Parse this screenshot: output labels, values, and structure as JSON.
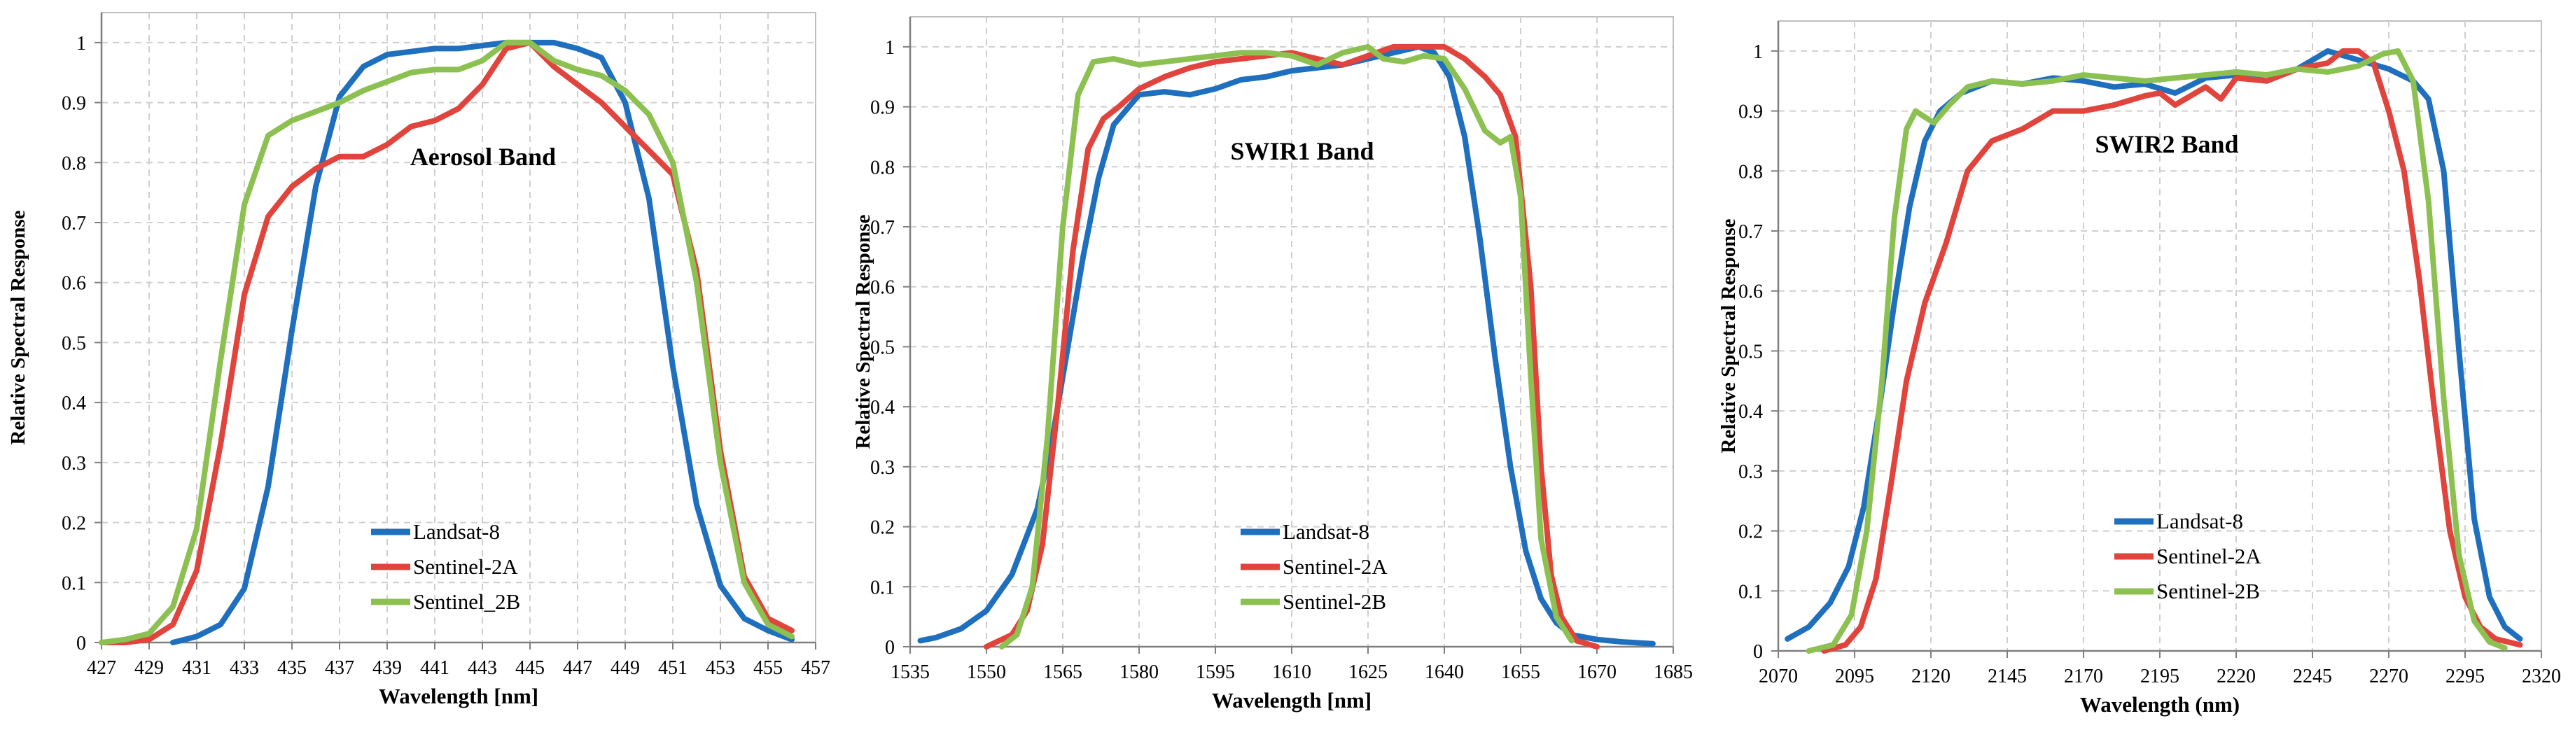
{
  "chart_data": [
    {
      "type": "line",
      "title": "Aerosol Band",
      "xlabel": "Wavelength [nm]",
      "ylabel": "Relative Spectral Response",
      "xlim": [
        427,
        457
      ],
      "ylim": [
        0,
        1.05
      ],
      "xticks": [
        427,
        429,
        431,
        433,
        435,
        437,
        439,
        441,
        443,
        445,
        447,
        449,
        451,
        453,
        455,
        457
      ],
      "yticks": [
        0,
        0.1,
        0.2,
        0.3,
        0.4,
        0.5,
        0.6,
        0.7,
        0.8,
        0.9,
        1
      ],
      "grid": true,
      "legend": "bottom-center",
      "series": [
        {
          "name": "Landsat-8",
          "color": "#1f6fbf",
          "x": [
            430,
            431,
            432,
            433,
            434,
            435,
            436,
            437,
            438,
            439,
            440,
            441,
            442,
            443,
            444,
            445,
            446,
            447,
            448,
            449,
            450,
            451,
            452,
            453,
            454,
            455,
            456
          ],
          "y": [
            0.0,
            0.01,
            0.03,
            0.09,
            0.26,
            0.52,
            0.76,
            0.91,
            0.96,
            0.98,
            0.985,
            0.99,
            0.99,
            0.995,
            1.0,
            1.0,
            1.0,
            0.99,
            0.975,
            0.9,
            0.74,
            0.46,
            0.23,
            0.095,
            0.04,
            0.02,
            0.005
          ]
        },
        {
          "name": "Sentinel-2A",
          "color": "#e0443c",
          "x": [
            427,
            428,
            429,
            430,
            431,
            432,
            433,
            434,
            435,
            436,
            437,
            438,
            439,
            440,
            441,
            442,
            443,
            444,
            445,
            446,
            447,
            448,
            449,
            450,
            451,
            452,
            453,
            454,
            455,
            456
          ],
          "y": [
            0.0,
            0.0,
            0.005,
            0.03,
            0.12,
            0.33,
            0.58,
            0.71,
            0.76,
            0.79,
            0.81,
            0.81,
            0.83,
            0.86,
            0.87,
            0.89,
            0.93,
            0.99,
            1.0,
            0.96,
            0.93,
            0.9,
            0.86,
            0.82,
            0.78,
            0.62,
            0.32,
            0.11,
            0.04,
            0.02
          ]
        },
        {
          "name": "Sentinel_2B",
          "color": "#8cc152",
          "x": [
            427,
            428,
            429,
            430,
            431,
            432,
            433,
            434,
            435,
            436,
            437,
            438,
            439,
            440,
            441,
            442,
            443,
            444,
            445,
            446,
            447,
            448,
            449,
            450,
            451,
            452,
            453,
            454,
            455,
            456
          ],
          "y": [
            0.0,
            0.005,
            0.015,
            0.06,
            0.19,
            0.47,
            0.73,
            0.845,
            0.87,
            0.885,
            0.9,
            0.92,
            0.935,
            0.95,
            0.955,
            0.955,
            0.97,
            1.0,
            1.0,
            0.97,
            0.955,
            0.945,
            0.92,
            0.88,
            0.8,
            0.6,
            0.3,
            0.1,
            0.03,
            0.01
          ]
        }
      ]
    },
    {
      "type": "line",
      "title": "SWIR1 Band",
      "xlabel": "Wavelength [nm]",
      "ylabel": "Relative Spectral Response",
      "xlim": [
        1535,
        1685
      ],
      "ylim": [
        0,
        1.05
      ],
      "xticks": [
        1535,
        1550,
        1565,
        1580,
        1595,
        1610,
        1625,
        1640,
        1655,
        1670,
        1685
      ],
      "yticks": [
        0,
        0.1,
        0.2,
        0.3,
        0.4,
        0.5,
        0.6,
        0.7,
        0.8,
        0.9,
        1
      ],
      "grid": true,
      "legend": "bottom-center",
      "series": [
        {
          "name": "Landsat-8",
          "color": "#1f6fbf",
          "x": [
            1537,
            1540,
            1545,
            1550,
            1555,
            1560,
            1563,
            1566,
            1569,
            1572,
            1575,
            1580,
            1585,
            1590,
            1595,
            1600,
            1605,
            1610,
            1615,
            1620,
            1625,
            1630,
            1635,
            1638,
            1641,
            1644,
            1647,
            1650,
            1653,
            1656,
            1659,
            1662,
            1665,
            1670,
            1675,
            1681
          ],
          "y": [
            0.01,
            0.015,
            0.03,
            0.06,
            0.12,
            0.23,
            0.35,
            0.5,
            0.65,
            0.78,
            0.87,
            0.92,
            0.925,
            0.92,
            0.93,
            0.945,
            0.95,
            0.96,
            0.965,
            0.97,
            0.98,
            0.99,
            1.0,
            0.99,
            0.95,
            0.85,
            0.68,
            0.48,
            0.3,
            0.16,
            0.08,
            0.04,
            0.02,
            0.012,
            0.008,
            0.005
          ]
        },
        {
          "name": "Sentinel-2A",
          "color": "#e0443c",
          "x": [
            1550,
            1555,
            1558,
            1561,
            1564,
            1567,
            1570,
            1573,
            1576,
            1580,
            1585,
            1590,
            1595,
            1600,
            1605,
            1610,
            1615,
            1620,
            1625,
            1630,
            1635,
            1640,
            1644,
            1648,
            1651,
            1654,
            1657,
            1659,
            1661,
            1663,
            1666,
            1670
          ],
          "y": [
            0.0,
            0.02,
            0.06,
            0.17,
            0.4,
            0.66,
            0.83,
            0.88,
            0.9,
            0.93,
            0.95,
            0.965,
            0.975,
            0.98,
            0.985,
            0.99,
            0.98,
            0.97,
            0.985,
            1.0,
            1.0,
            1.0,
            0.98,
            0.95,
            0.92,
            0.85,
            0.6,
            0.3,
            0.12,
            0.05,
            0.01,
            0.0
          ]
        },
        {
          "name": "Sentinel-2B",
          "color": "#8cc152",
          "x": [
            1553,
            1556,
            1559,
            1562,
            1565,
            1568,
            1571,
            1575,
            1580,
            1585,
            1590,
            1595,
            1600,
            1605,
            1610,
            1615,
            1620,
            1625,
            1628,
            1632,
            1636,
            1640,
            1644,
            1648,
            1651,
            1653,
            1655,
            1657,
            1659,
            1662,
            1665
          ],
          "y": [
            0.0,
            0.02,
            0.1,
            0.35,
            0.7,
            0.92,
            0.975,
            0.98,
            0.97,
            0.975,
            0.98,
            0.985,
            0.99,
            0.99,
            0.985,
            0.97,
            0.99,
            1.0,
            0.98,
            0.975,
            0.985,
            0.98,
            0.93,
            0.86,
            0.84,
            0.85,
            0.75,
            0.45,
            0.18,
            0.05,
            0.01
          ]
        }
      ]
    },
    {
      "type": "line",
      "title": "SWIR2 Band",
      "xlabel": "Wavelength (nm)",
      "ylabel": "Relative Spectral Response",
      "xlim": [
        2070,
        2320
      ],
      "ylim": [
        0,
        1.05
      ],
      "xticks": [
        2070,
        2095,
        2120,
        2145,
        2170,
        2195,
        2220,
        2245,
        2270,
        2295,
        2320
      ],
      "yticks": [
        0,
        0.1,
        0.2,
        0.3,
        0.4,
        0.5,
        0.6,
        0.7,
        0.8,
        0.9,
        1
      ],
      "grid": true,
      "legend": "bottom-center",
      "series": [
        {
          "name": "Landsat-8",
          "color": "#1f6fbf",
          "x": [
            2073,
            2080,
            2087,
            2093,
            2098,
            2103,
            2108,
            2113,
            2118,
            2123,
            2130,
            2140,
            2150,
            2160,
            2170,
            2180,
            2190,
            2200,
            2210,
            2220,
            2230,
            2240,
            2250,
            2260,
            2270,
            2278,
            2283,
            2288,
            2293,
            2298,
            2303,
            2308,
            2313
          ],
          "y": [
            0.02,
            0.04,
            0.08,
            0.14,
            0.24,
            0.4,
            0.58,
            0.74,
            0.85,
            0.9,
            0.93,
            0.95,
            0.945,
            0.955,
            0.95,
            0.94,
            0.945,
            0.93,
            0.955,
            0.96,
            0.95,
            0.97,
            1.0,
            0.985,
            0.97,
            0.95,
            0.92,
            0.8,
            0.5,
            0.22,
            0.09,
            0.04,
            0.02
          ]
        },
        {
          "name": "Sentinel-2A",
          "color": "#e0443c",
          "x": [
            2085,
            2092,
            2097,
            2102,
            2107,
            2112,
            2118,
            2125,
            2132,
            2140,
            2150,
            2160,
            2170,
            2180,
            2190,
            2195,
            2200,
            2210,
            2215,
            2220,
            2230,
            2240,
            2250,
            2255,
            2260,
            2265,
            2270,
            2275,
            2280,
            2285,
            2290,
            2295,
            2300,
            2305,
            2313
          ],
          "y": [
            0.0,
            0.01,
            0.04,
            0.12,
            0.28,
            0.45,
            0.58,
            0.68,
            0.8,
            0.85,
            0.87,
            0.9,
            0.9,
            0.91,
            0.925,
            0.93,
            0.91,
            0.94,
            0.92,
            0.955,
            0.95,
            0.97,
            0.98,
            1.0,
            1.0,
            0.98,
            0.9,
            0.8,
            0.62,
            0.4,
            0.2,
            0.09,
            0.04,
            0.02,
            0.01
          ]
        },
        {
          "name": "Sentinel-2B",
          "color": "#8cc152",
          "x": [
            2080,
            2088,
            2094,
            2099,
            2104,
            2108,
            2112,
            2115,
            2118,
            2121,
            2126,
            2132,
            2140,
            2150,
            2160,
            2170,
            2180,
            2190,
            2200,
            2210,
            2220,
            2230,
            2240,
            2250,
            2260,
            2268,
            2273,
            2278,
            2283,
            2288,
            2293,
            2298,
            2303,
            2308
          ],
          "y": [
            0.0,
            0.01,
            0.06,
            0.2,
            0.45,
            0.72,
            0.87,
            0.9,
            0.89,
            0.88,
            0.91,
            0.94,
            0.95,
            0.945,
            0.95,
            0.96,
            0.955,
            0.95,
            0.955,
            0.96,
            0.965,
            0.96,
            0.97,
            0.965,
            0.975,
            0.995,
            1.0,
            0.95,
            0.75,
            0.42,
            0.16,
            0.05,
            0.015,
            0.005
          ]
        }
      ]
    }
  ]
}
